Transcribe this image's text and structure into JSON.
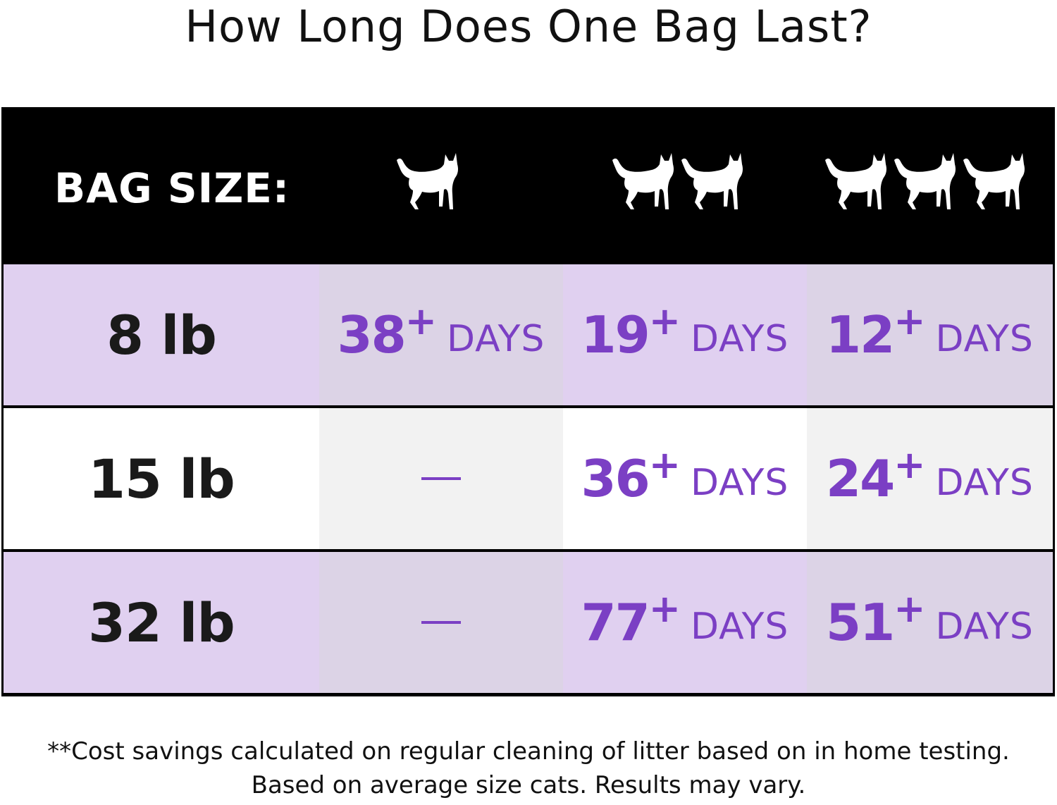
{
  "title": "How Long Does One Bag Last?",
  "header": {
    "label": "BAG SIZE:",
    "columns": [
      {
        "cats": 1,
        "icon": "cat-icon"
      },
      {
        "cats": 2,
        "icon": "cat-icon"
      },
      {
        "cats": 3,
        "icon": "cat-icon"
      }
    ]
  },
  "rows": [
    {
      "size": "8 lb",
      "values": [
        {
          "num": "38",
          "plus": "+",
          "unit": "DAYS"
        },
        {
          "num": "19",
          "plus": "+",
          "unit": "DAYS"
        },
        {
          "num": "12",
          "plus": "+",
          "unit": "DAYS"
        }
      ]
    },
    {
      "size": "15 lb",
      "values": [
        null,
        {
          "num": "36",
          "plus": "+",
          "unit": "DAYS"
        },
        {
          "num": "24",
          "plus": "+",
          "unit": "DAYS"
        }
      ]
    },
    {
      "size": "32 lb",
      "values": [
        null,
        {
          "num": "77",
          "plus": "+",
          "unit": "DAYS"
        },
        {
          "num": "51",
          "plus": "+",
          "unit": "DAYS"
        }
      ]
    }
  ],
  "footnote": {
    "line1": "**Cost savings calculated on regular cleaning of litter based on in home testing.",
    "line2": "Based on average size cats. Results may vary."
  },
  "colors": {
    "accent": "#7b3fc4",
    "header_bg": "#000000",
    "row_lavender": "#e0d0f0",
    "row_lavender_alt": "#dcd3e6",
    "row_white": "#ffffff",
    "row_white_alt": "#f2f2f2"
  }
}
